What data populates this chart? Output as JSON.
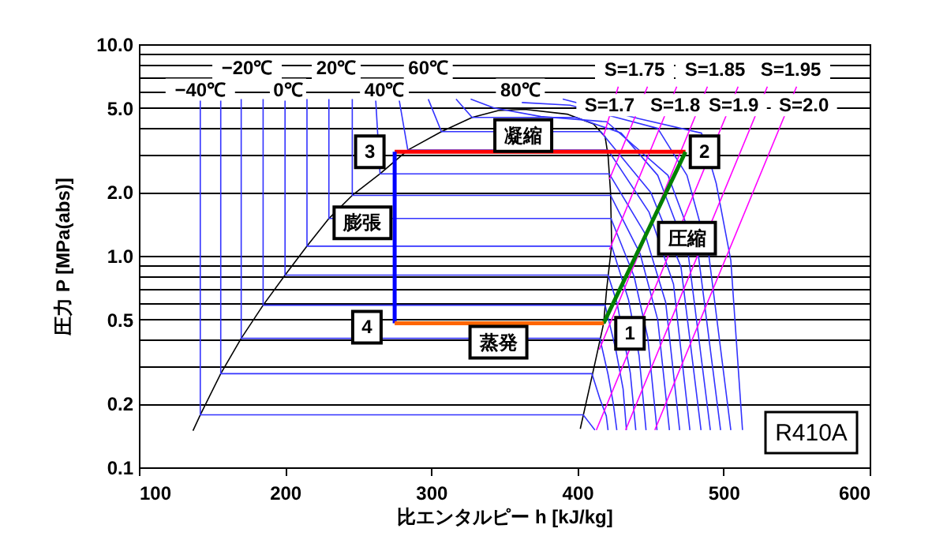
{
  "chart_data": {
    "type": "line",
    "xlabel": "比エンタルピー h [kJ/kg]",
    "ylabel": "圧力 P [MPa(abs)]",
    "xlim": [
      100,
      600
    ],
    "xticks": [
      100,
      200,
      300,
      400,
      500,
      600
    ],
    "ylim": [
      0.1,
      10
    ],
    "yticks": [
      0.1,
      0.2,
      {
        "value": 0.3,
        "label": null
      },
      {
        "value": 0.4,
        "label": null
      },
      0.5,
      {
        "value": 0.6,
        "label": null
      },
      {
        "value": 0.7,
        "label": null
      },
      {
        "value": 0.8,
        "label": null
      },
      {
        "value": 0.9,
        "label": null
      },
      {
        "value": 1,
        "label": "1.0"
      },
      {
        "value": 2,
        "label": "2.0"
      },
      {
        "value": 3,
        "label": null
      },
      {
        "value": 4,
        "label": null
      },
      {
        "value": 5,
        "label": "5.0"
      },
      {
        "value": 6,
        "label": null
      },
      {
        "value": 7,
        "label": null
      },
      {
        "value": 8,
        "label": null
      },
      {
        "value": 9,
        "label": null
      },
      {
        "value": 10,
        "label": "10.0"
      }
    ],
    "log": true,
    "grid": "y",
    "series": [
      {
        "color": "#000000",
        "x": [
          137,
          142,
          156,
          170,
          185,
          200,
          215,
          230,
          246,
          265,
          284,
          307,
          328,
          346,
          364,
          393,
          411,
          419,
          421,
          422.7,
          423.5,
          420,
          418,
          412,
          402
        ],
        "values": [
          0.149,
          0.177,
          0.277,
          0.407,
          0.584,
          0.81,
          1.11,
          1.5,
          1.93,
          2.44,
          3.16,
          3.86,
          4.51,
          4.86,
          4.92,
          4.67,
          4.2,
          3.65,
          2.98,
          2.0,
          1.13,
          0.69,
          0.48,
          0.31,
          0.152
        ]
      },
      {
        "color": "#3333ff",
        "x": [
          142,
          142,
          404,
          408,
          412
        ],
        "values": [
          5.5,
          0.177,
          0.177,
          0.163,
          0.15
        ]
      },
      {
        "color": "#3333ff",
        "x": [
          156,
          156,
          410,
          415.5,
          419.8,
          421
        ],
        "values": [
          5.5,
          0.277,
          0.277,
          0.21,
          0.175,
          0.15
        ]
      },
      {
        "color": "#3333ff",
        "x": [
          170,
          170,
          415.4,
          421,
          424.6,
          427
        ],
        "values": [
          5.5,
          0.407,
          0.407,
          0.275,
          0.2,
          0.15
        ]
      },
      {
        "color": "#3333ff",
        "x": [
          185,
          185,
          419,
          426.3,
          431.3,
          433.6
        ],
        "values": [
          5.5,
          0.584,
          0.584,
          0.36,
          0.235,
          0.15
        ]
      },
      {
        "color": "#3333ff",
        "x": [
          200,
          200,
          421,
          427.1,
          436.2,
          440
        ],
        "values": [
          5.5,
          0.81,
          0.81,
          0.6,
          0.28,
          0.15
        ]
      },
      {
        "color": "#3333ff",
        "x": [
          215,
          215,
          423.5,
          435,
          442.2,
          447
        ],
        "values": [
          5.5,
          1.11,
          1.11,
          0.62,
          0.338,
          0.15
        ]
      },
      {
        "color": "#3333ff",
        "x": [
          230,
          230,
          423,
          438.8,
          448.2,
          454.5
        ],
        "values": [
          5.5,
          1.5,
          1.5,
          0.8,
          0.41,
          0.15
        ]
      },
      {
        "color": "#3333ff",
        "x": [
          246,
          246,
          422.7,
          443,
          455,
          463
        ],
        "values": [
          5.5,
          1.93,
          1.93,
          1.02,
          0.498,
          0.15
        ]
      },
      {
        "color": "#3333ff",
        "x": [
          262,
          265,
          421.8,
          446,
          460.4,
          470
        ],
        "values": [
          5.5,
          2.44,
          2.44,
          1.285,
          0.604,
          0.15
        ]
      },
      {
        "color": "#3333ff",
        "x": [
          278,
          284,
          421,
          449,
          465.8,
          477
        ],
        "values": [
          5.5,
          3.16,
          3.16,
          1.61,
          0.734,
          0.15
        ]
      },
      {
        "color": "#3333ff",
        "x": [
          298,
          307,
          416,
          450.3,
          470.9,
          484.6
        ],
        "values": [
          5.5,
          3.86,
          3.86,
          1.99,
          0.886,
          0.15
        ]
      },
      {
        "color": "#3333ff",
        "x": [
          317,
          328,
          399,
          430,
          455,
          476,
          491
        ],
        "values": [
          5.5,
          4.51,
          4.51,
          3.8,
          2.4,
          1.0,
          0.15
        ]
      },
      {
        "color": "#3333ff",
        "x": [
          327,
          343,
          375,
          420,
          462,
          483,
          498
        ],
        "values": [
          5.5,
          5.0,
          4.55,
          4.3,
          2.4,
          0.98,
          0.15
        ]
      },
      {
        "color": "#3333ff",
        "x": [
          362,
          395,
          455,
          475,
          490,
          505
        ],
        "values": [
          5.3,
          5.15,
          4.0,
          2.4,
          1.0,
          0.15
        ]
      },
      {
        "color": "#3333ff",
        "x": [
          390,
          442,
          485,
          495,
          505,
          513
        ],
        "values": [
          5.5,
          4.45,
          3.8,
          2.2,
          0.95,
          0.15
        ]
      },
      {
        "color": "#ff00ff",
        "x": [
          418,
          428
        ],
        "values": [
          3.7,
          6.3
        ]
      },
      {
        "color": "#ff00ff",
        "x": [
          422,
          448
        ],
        "values": [
          2.3,
          6.3
        ]
      },
      {
        "color": "#ff00ff",
        "x": [
          422,
          468
        ],
        "values": [
          1.07,
          6.3
        ]
      },
      {
        "color": "#ff00ff",
        "x": [
          415,
          489
        ],
        "values": [
          0.36,
          6.3
        ]
      },
      {
        "color": "#ff00ff",
        "x": [
          413,
          510
        ],
        "values": [
          0.15,
          6.3
        ]
      },
      {
        "color": "#ff00ff",
        "x": [
          433,
          530
        ],
        "values": [
          0.15,
          6.3
        ]
      },
      {
        "color": "#ff00ff",
        "x": [
          453,
          550
        ],
        "values": [
          0.15,
          6.3
        ]
      },
      {
        "color": "#ff0000",
        "x": [
          275,
          474
        ],
        "values": [
          3.1,
          3.1
        ]
      },
      {
        "color": "#008000",
        "x": [
          418,
          474
        ],
        "values": [
          0.48,
          3.1
        ]
      },
      {
        "color": "#0000ff",
        "x": [
          275,
          275
        ],
        "values": [
          3.1,
          0.48
        ]
      },
      {
        "color": "#ff6600",
        "x": [
          275,
          418
        ],
        "values": [
          0.48,
          0.48
        ]
      }
    ],
    "annotations": [
      {
        "text": "−40℃",
        "x": 142,
        "y": 6.1
      },
      {
        "text": "−20℃",
        "x": 174,
        "y": 7.7
      },
      {
        "text": "0℃",
        "x": 202,
        "y": 6.1
      },
      {
        "text": "20℃",
        "x": 235,
        "y": 7.7
      },
      {
        "text": "40℃",
        "x": 268,
        "y": 6.1
      },
      {
        "text": "60℃",
        "x": 298,
        "y": 7.7
      },
      {
        "text": "80℃",
        "x": 361,
        "y": 6.1
      },
      {
        "text": "S=1.7",
        "x": 422,
        "y": 5.15
      },
      {
        "text": "S=1.8",
        "x": 467,
        "y": 5.15
      },
      {
        "text": "S=1.9",
        "x": 507,
        "y": 5.15
      },
      {
        "text": "S=2.0",
        "x": 555,
        "y": 5.15
      },
      {
        "text": "3",
        "x": 258,
        "y": 3.1
      },
      {
        "text": "2",
        "x": 487,
        "y": 3.1
      },
      {
        "text": "1",
        "x": 436,
        "y": 0.43
      },
      {
        "text": "4",
        "x": 256,
        "y": 0.46
      },
      {
        "text": "凝縮",
        "x": 363,
        "y": 3.7
      },
      {
        "text": "膨張",
        "x": 253,
        "y": 1.43
      },
      {
        "text": "圧縮",
        "x": 475,
        "y": 1.21
      },
      {
        "text": "蒸発",
        "x": 346,
        "y": 0.39
      },
      "S=1.75",
      "S=1.85",
      "S=1.95",
      "R410A"
    ]
  }
}
